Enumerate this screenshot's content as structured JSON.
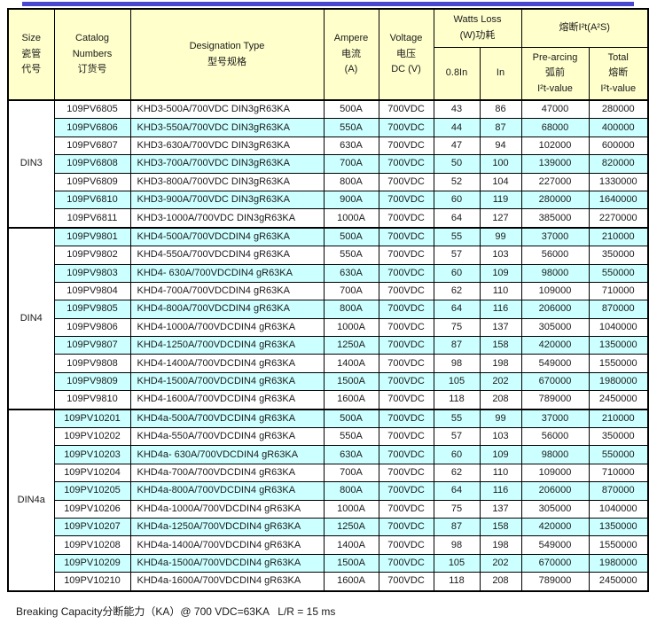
{
  "accent": {
    "top_bar_color": "#4848ce"
  },
  "header": {
    "size": [
      "Size",
      "瓷管",
      "代号"
    ],
    "catalog": [
      "Catalog",
      "Numbers",
      "订货号"
    ],
    "designation": [
      "Designation Type",
      "型号规格"
    ],
    "ampere": [
      "Ampere",
      "电流",
      "(A)"
    ],
    "voltage": [
      "Voltage",
      "电压",
      "DC (V)"
    ],
    "watts_loss": [
      "Watts Loss",
      "(W)功耗"
    ],
    "watts_sub": [
      "0.8In",
      "In"
    ],
    "i2t": "熔断I²t(A²S)",
    "prearcing": [
      "Pre-arcing",
      "弧前",
      "I²t-value"
    ],
    "total": [
      "Total",
      "熔断",
      "I²t-value"
    ]
  },
  "sections": [
    {
      "size": "DIN3",
      "stripes": [
        false,
        true,
        false,
        true,
        false,
        true,
        false
      ],
      "rows": [
        [
          "109PV6805",
          "KHD3-500A/700VDC DIN3gR63KA",
          "500A",
          "700VDC",
          "43",
          "86",
          "47000",
          "280000"
        ],
        [
          "109PV6806",
          "KHD3-550A/700VDC DIN3gR63KA",
          "550A",
          "700VDC",
          "44",
          "87",
          "68000",
          "400000"
        ],
        [
          "109PV6807",
          "KHD3-630A/700VDC DIN3gR63KA",
          "630A",
          "700VDC",
          "47",
          "94",
          "102000",
          "600000"
        ],
        [
          "109PV6808",
          "KHD3-700A/700VDC DIN3gR63KA",
          "700A",
          "700VDC",
          "50",
          "100",
          "139000",
          "820000"
        ],
        [
          "109PV6809",
          "KHD3-800A/700VDC DIN3gR63KA",
          "800A",
          "700VDC",
          "52",
          "104",
          "227000",
          "1330000"
        ],
        [
          "109PV6810",
          "KHD3-900A/700VDC DIN3gR63KA",
          "900A",
          "700VDC",
          "60",
          "119",
          "280000",
          "1640000"
        ],
        [
          "109PV6811",
          "KHD3-1000A/700VDC DIN3gR63KA",
          "1000A",
          "700VDC",
          "64",
          "127",
          "385000",
          "2270000"
        ]
      ]
    },
    {
      "size": "DIN4",
      "stripes": [
        true,
        false,
        true,
        false,
        true,
        false,
        true,
        false,
        true,
        false
      ],
      "rows": [
        [
          "109PV9801",
          "KHD4-500A/700VDCDIN4 gR63KA",
          "500A",
          "700VDC",
          "55",
          "99",
          "37000",
          "210000"
        ],
        [
          "109PV9802",
          "KHD4-550A/700VDCDIN4 gR63KA",
          "550A",
          "700VDC",
          "57",
          "103",
          "56000",
          "350000"
        ],
        [
          "109PV9803",
          "KHD4- 630A/700VDCDIN4 gR63KA",
          "630A",
          "700VDC",
          "60",
          "109",
          "98000",
          "550000"
        ],
        [
          "109PV9804",
          "KHD4-700A/700VDCDIN4 gR63KA",
          "700A",
          "700VDC",
          "62",
          "110",
          "109000",
          "710000"
        ],
        [
          "109PV9805",
          "KHD4-800A/700VDCDIN4 gR63KA",
          "800A",
          "700VDC",
          "64",
          "116",
          "206000",
          "870000"
        ],
        [
          "109PV9806",
          "KHD4-1000A/700VDCDIN4 gR63KA",
          "1000A",
          "700VDC",
          "75",
          "137",
          "305000",
          "1040000"
        ],
        [
          "109PV9807",
          "KHD4-1250A/700VDCDIN4 gR63KA",
          "1250A",
          "700VDC",
          "87",
          "158",
          "420000",
          "1350000"
        ],
        [
          "109PV9808",
          "KHD4-1400A/700VDCDIN4 gR63KA",
          "1400A",
          "700VDC",
          "98",
          "198",
          "549000",
          "1550000"
        ],
        [
          "109PV9809",
          "KHD4-1500A/700VDCDIN4 gR63KA",
          "1500A",
          "700VDC",
          "105",
          "202",
          "670000",
          "1980000"
        ],
        [
          "109PV9810",
          "KHD4-1600A/700VDCDIN4 gR63KA",
          "1600A",
          "700VDC",
          "118",
          "208",
          "789000",
          "2450000"
        ]
      ]
    },
    {
      "size": "DIN4a",
      "stripes": [
        true,
        false,
        true,
        false,
        true,
        false,
        true,
        false,
        true,
        false
      ],
      "rows": [
        [
          "109PV10201",
          "KHD4a-500A/700VDCDIN4 gR63KA",
          "500A",
          "700VDC",
          "55",
          "99",
          "37000",
          "210000"
        ],
        [
          "109PV10202",
          "KHD4a-550A/700VDCDIN4 gR63KA",
          "550A",
          "700VDC",
          "57",
          "103",
          "56000",
          "350000"
        ],
        [
          "109PV10203",
          "KHD4a- 630A/700VDCDIN4 gR63KA",
          "630A",
          "700VDC",
          "60",
          "109",
          "98000",
          "550000"
        ],
        [
          "109PV10204",
          "KHD4a-700A/700VDCDIN4 gR63KA",
          "700A",
          "700VDC",
          "62",
          "110",
          "109000",
          "710000"
        ],
        [
          "109PV10205",
          "KHD4a-800A/700VDCDIN4 gR63KA",
          "800A",
          "700VDC",
          "64",
          "116",
          "206000",
          "870000"
        ],
        [
          "109PV10206",
          "KHD4a-1000A/700VDCDIN4 gR63KA",
          "1000A",
          "700VDC",
          "75",
          "137",
          "305000",
          "1040000"
        ],
        [
          "109PV10207",
          "KHD4a-1250A/700VDCDIN4 gR63KA",
          "1250A",
          "700VDC",
          "87",
          "158",
          "420000",
          "1350000"
        ],
        [
          "109PV10208",
          "KHD4a-1400A/700VDCDIN4 gR63KA",
          "1400A",
          "700VDC",
          "98",
          "198",
          "549000",
          "1550000"
        ],
        [
          "109PV10209",
          "KHD4a-1500A/700VDCDIN4 gR63KA",
          "1500A",
          "700VDC",
          "105",
          "202",
          "670000",
          "1980000"
        ],
        [
          "109PV10210",
          "KHD4a-1600A/700VDCDIN4 gR63KA",
          "1600A",
          "700VDC",
          "118",
          "208",
          "789000",
          "2450000"
        ]
      ]
    }
  ],
  "footer": "Breaking Capacity分断能力（KA）@ 700 VDC=63KA   L/R = 15 ms"
}
